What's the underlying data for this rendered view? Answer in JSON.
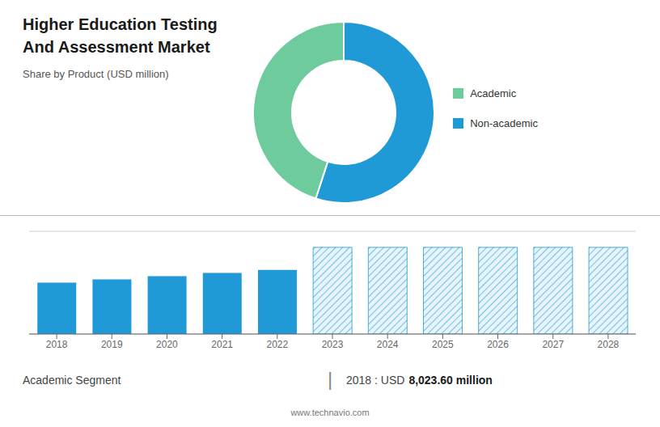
{
  "chart_data": [
    {
      "type": "pie",
      "title": "Higher Education Testing And Assessment Market",
      "subtitle": "Share by Product (USD million)",
      "categories": [
        "Non-academic",
        "Academic"
      ],
      "values": [
        55,
        45
      ],
      "colors": [
        "#1f9ad6",
        "#6ecb9e"
      ],
      "legend": "right"
    },
    {
      "type": "bar",
      "categories": [
        "2018",
        "2019",
        "2020",
        "2021",
        "2022",
        "2023",
        "2024",
        "2025",
        "2026",
        "2027",
        "2028"
      ],
      "values": [
        8.0,
        8.5,
        9.0,
        9.5,
        10.0,
        13.5,
        13.5,
        13.5,
        13.5,
        13.5,
        13.5
      ],
      "colors": [
        "#1f9ad6",
        "#1f9ad6",
        "#1f9ad6",
        "#1f9ad6",
        "#1f9ad6",
        "#e8f4fc",
        "#e8f4fc",
        "#e8f4fc",
        "#e8f4fc",
        "#e8f4fc",
        "#e8f4fc"
      ],
      "ylim": [
        0,
        16
      ],
      "yticks": [
        0,
        4,
        8,
        12,
        16
      ],
      "grid": true,
      "tick_labels": "x",
      "annotations": [
        "Academic Segment",
        "|",
        "2018 : USD",
        "8,023.60 million",
        "www.technavio.com"
      ]
    }
  ]
}
